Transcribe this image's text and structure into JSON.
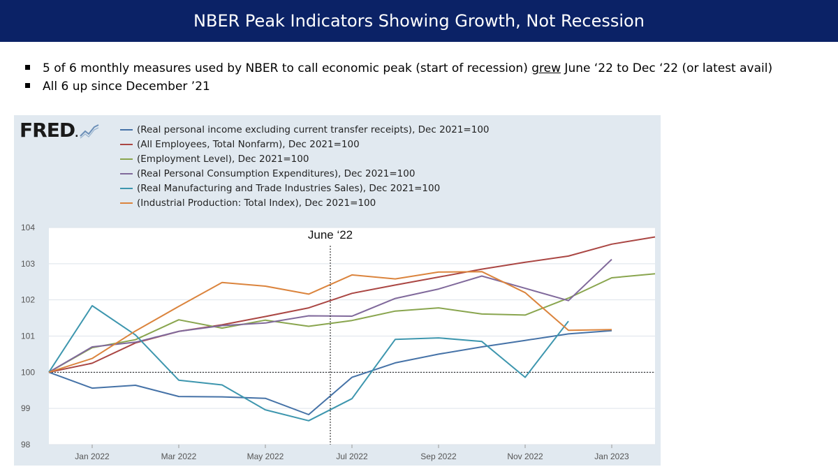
{
  "slide": {
    "title": "NBER Peak Indicators Showing Growth, Not Recession",
    "bullets": [
      {
        "prefix": "5 of 6 monthly measures used by NBER to call economic peak (start of recession) ",
        "emphasis": "grew",
        "suffix": " June ‘22 to Dec ‘22 (or latest avail)"
      },
      {
        "text": "All 6 up since December ’21"
      }
    ]
  },
  "fred": {
    "logo_text": "FRED",
    "logo_mark": "."
  },
  "chart_data": {
    "type": "line",
    "ylim": [
      98,
      104
    ],
    "y_ticks": [
      98,
      99,
      100,
      101,
      102,
      103,
      104
    ],
    "x_ticks": [
      {
        "label": "Jan 2022",
        "month": 1
      },
      {
        "label": "Mar 2022",
        "month": 3
      },
      {
        "label": "May 2022",
        "month": 5
      },
      {
        "label": "Jul 2022",
        "month": 7
      },
      {
        "label": "Sep 2022",
        "month": 9
      },
      {
        "label": "Nov 2022",
        "month": 11
      },
      {
        "label": "Jan 2023",
        "month": 13
      }
    ],
    "x_domain": [
      "2021-12",
      "2023-02"
    ],
    "annotation": {
      "label": "June ‘22",
      "month": 6.5
    },
    "reference_y": 100,
    "series": [
      {
        "name": "(Real personal income excluding current transfer receipts), Dec 2021=100",
        "color": "#4572a7",
        "x": [
          "2021-12",
          "2022-01",
          "2022-02",
          "2022-03",
          "2022-04",
          "2022-05",
          "2022-06",
          "2022-07",
          "2022-08",
          "2022-09",
          "2022-10",
          "2022-11",
          "2022-12",
          "2023-01"
        ],
        "values": [
          100,
          99.56,
          99.64,
          99.33,
          99.32,
          99.28,
          98.83,
          99.86,
          100.26,
          100.5,
          100.7,
          100.88,
          101.06,
          101.15
        ]
      },
      {
        "name": "(All Employees, Total Nonfarm), Dec 2021=100",
        "color": "#aa4643",
        "x": [
          "2021-12",
          "2022-01",
          "2022-02",
          "2022-03",
          "2022-04",
          "2022-05",
          "2022-06",
          "2022-07",
          "2022-08",
          "2022-09",
          "2022-10",
          "2022-11",
          "2022-12",
          "2023-01",
          "2023-02"
        ],
        "values": [
          100,
          100.25,
          100.81,
          101.13,
          101.31,
          101.54,
          101.78,
          102.18,
          102.41,
          102.63,
          102.85,
          103.04,
          103.21,
          103.54,
          103.74
        ]
      },
      {
        "name": "(Employment Level), Dec 2021=100",
        "color": "#89a54e",
        "x": [
          "2021-12",
          "2022-01",
          "2022-02",
          "2022-03",
          "2022-04",
          "2022-05",
          "2022-06",
          "2022-07",
          "2022-08",
          "2022-09",
          "2022-10",
          "2022-11",
          "2022-12",
          "2023-01",
          "2023-02"
        ],
        "values": [
          100,
          100.68,
          100.9,
          101.45,
          101.22,
          101.44,
          101.27,
          101.43,
          101.69,
          101.78,
          101.61,
          101.58,
          102.05,
          102.61,
          102.72
        ]
      },
      {
        "name": "(Real Personal Consumption Expenditures), Dec 2021=100",
        "color": "#80699b",
        "x": [
          "2021-12",
          "2022-01",
          "2022-02",
          "2022-03",
          "2022-04",
          "2022-05",
          "2022-06",
          "2022-07",
          "2022-08",
          "2022-09",
          "2022-10",
          "2022-11",
          "2022-12",
          "2023-01"
        ],
        "values": [
          100,
          100.7,
          100.83,
          101.13,
          101.29,
          101.36,
          101.56,
          101.55,
          102.04,
          102.3,
          102.66,
          102.32,
          101.98,
          103.12
        ]
      },
      {
        "name": "(Real Manufacturing and Trade Industries Sales), Dec 2021=100",
        "color": "#3d96ae",
        "x": [
          "2021-12",
          "2022-01",
          "2022-02",
          "2022-03",
          "2022-04",
          "2022-05",
          "2022-06",
          "2022-07",
          "2022-08",
          "2022-09",
          "2022-10",
          "2022-11",
          "2022-12"
        ],
        "values": [
          100,
          101.84,
          101.03,
          99.78,
          99.65,
          98.96,
          98.66,
          99.27,
          100.91,
          100.95,
          100.85,
          99.86,
          101.41
        ]
      },
      {
        "name": "(Industrial Production: Total Index), Dec 2021=100",
        "color": "#db843d",
        "x": [
          "2021-12",
          "2022-01",
          "2022-02",
          "2022-03",
          "2022-04",
          "2022-05",
          "2022-06",
          "2022-07",
          "2022-08",
          "2022-09",
          "2022-10",
          "2022-11",
          "2022-12",
          "2023-01"
        ],
        "values": [
          100,
          100.38,
          101.14,
          101.82,
          102.48,
          102.38,
          102.16,
          102.69,
          102.58,
          102.77,
          102.78,
          102.2,
          101.16,
          101.18
        ]
      }
    ]
  }
}
